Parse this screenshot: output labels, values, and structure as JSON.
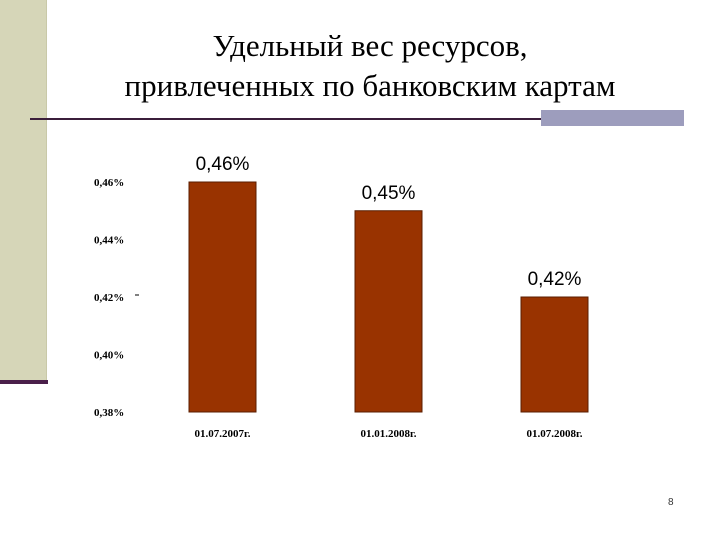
{
  "slide": {
    "title_line1": "Удельный вес ресурсов,",
    "title_line2": "привлеченных по банковским картам",
    "page_number": "8",
    "accent_color": "#4a1f4a",
    "band_color": "#d6d6b8",
    "bar_color": "#993300"
  },
  "chart_data": {
    "type": "bar",
    "title": "",
    "xlabel": "",
    "ylabel": "",
    "categories": [
      "01.07.2007г.",
      "01.01.2008г.",
      "01.07.2008г."
    ],
    "values": [
      0.46,
      0.45,
      0.42
    ],
    "data_labels": [
      "0,46%",
      "0,45%",
      "0,42%"
    ],
    "ylim": [
      0.38,
      0.47
    ],
    "yticks": [
      {
        "value": 0.46,
        "label": "0,46%"
      },
      {
        "value": 0.44,
        "label": "0,44%"
      },
      {
        "value": 0.42,
        "label": "0,42%"
      },
      {
        "value": 0.4,
        "label": "0,40%"
      },
      {
        "value": 0.38,
        "label": "0,38%"
      }
    ],
    "grid": false,
    "legend": "none"
  }
}
